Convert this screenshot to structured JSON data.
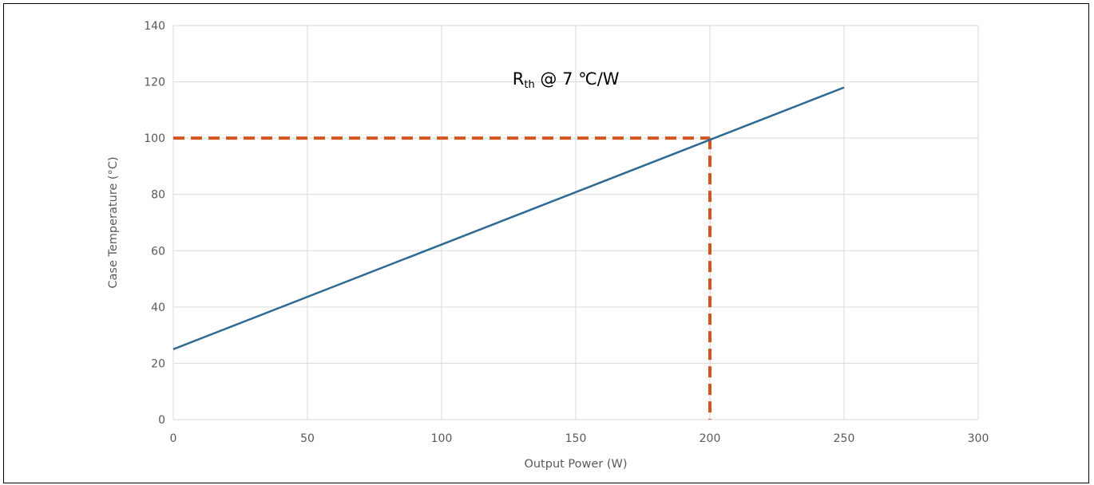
{
  "chart_data": {
    "type": "line",
    "title": "",
    "xlabel": "Output Power (W)",
    "ylabel": "Case Temperature (°C)",
    "xlim": [
      0,
      300
    ],
    "ylim": [
      0,
      140
    ],
    "xticks": [
      0,
      50,
      100,
      150,
      200,
      250,
      300
    ],
    "yticks": [
      0,
      20,
      40,
      60,
      80,
      100,
      120,
      140
    ],
    "grid": true,
    "legend": "none",
    "series": [
      {
        "x": [
          0,
          250
        ],
        "y": [
          25,
          118
        ],
        "color": "#2e6a93",
        "style": "solid"
      }
    ],
    "reference_lines": {
      "color": "#d4541f",
      "style": "dashed",
      "horizontal": {
        "y": 100,
        "x_from": 0,
        "x_to": 200
      },
      "vertical": {
        "x": 200,
        "y_from": 0,
        "y_to": 100
      }
    },
    "annotation": {
      "main": "R",
      "subscript": "th",
      "rest": " @ 7 ℃/W",
      "x": 130,
      "y": 121
    }
  },
  "colors": {
    "axis_text": "#595959",
    "gridline": "#d9d9d9",
    "frame": "#000000"
  }
}
